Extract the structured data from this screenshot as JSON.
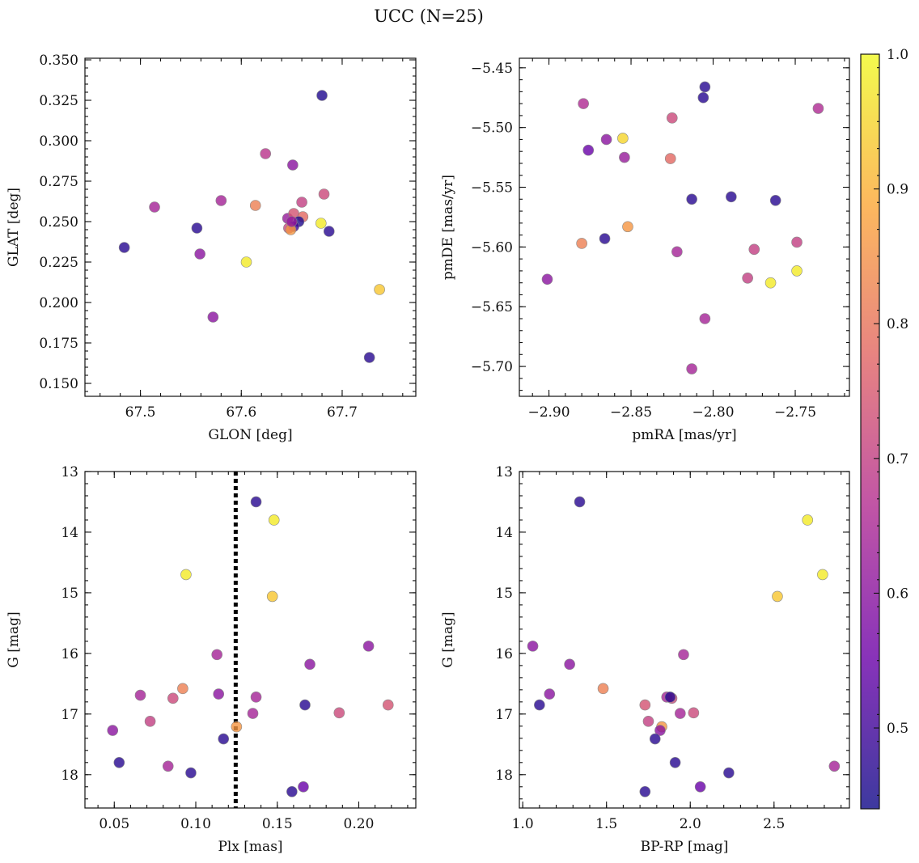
{
  "figure": {
    "title": "UCC (N=25)"
  },
  "colorbar": {
    "min": 0.44,
    "max": 1.0,
    "ticks": [
      0.5,
      0.6,
      0.7,
      0.8,
      0.9,
      1.0
    ],
    "tick_labels": [
      "0.5",
      "0.6",
      "0.7",
      "0.8",
      "0.9",
      "1.0"
    ],
    "colormap": "plasma",
    "colormap_stops": [
      "#0d0887",
      "#6a00a8",
      "#b12a90",
      "#e16462",
      "#fca636",
      "#f0f921"
    ],
    "alpha": 0.8
  },
  "chart_data": [
    {
      "id": "glon-glat",
      "type": "scatter",
      "xlabel": "GLON [deg]",
      "ylabel": "GLAT [deg]",
      "xlim": [
        67.445,
        67.773
      ],
      "ylim": [
        0.142,
        0.351
      ],
      "xticks": [
        67.5,
        67.6,
        67.7
      ],
      "xtick_labels": [
        "67.5",
        "67.6",
        "67.7"
      ],
      "yticks": [
        0.15,
        0.175,
        0.2,
        0.225,
        0.25,
        0.275,
        0.3,
        0.325,
        0.35
      ],
      "ytick_labels": [
        "0.150",
        "0.175",
        "0.200",
        "0.225",
        "0.250",
        "0.275",
        "0.300",
        "0.325",
        "0.350"
      ],
      "x": [
        67.68,
        67.624,
        67.651,
        67.514,
        67.58,
        67.682,
        67.66,
        67.614,
        67.556,
        67.646,
        67.652,
        67.661,
        67.679,
        67.657,
        67.652,
        67.687,
        67.647,
        67.649,
        67.484,
        67.559,
        67.605,
        67.737,
        67.572,
        67.727,
        67.65
      ],
      "y": [
        0.328,
        0.292,
        0.285,
        0.259,
        0.263,
        0.267,
        0.262,
        0.26,
        0.246,
        0.252,
        0.255,
        0.253,
        0.249,
        0.25,
        0.247,
        0.244,
        0.246,
        0.245,
        0.234,
        0.23,
        0.225,
        0.208,
        0.191,
        0.166,
        0.25
      ],
      "c": [
        0.46,
        0.68,
        0.6,
        0.64,
        0.64,
        0.72,
        0.7,
        0.82,
        0.47,
        0.62,
        0.74,
        0.78,
        0.98,
        0.46,
        0.5,
        0.47,
        0.72,
        0.86,
        0.47,
        0.6,
        0.98,
        0.93,
        0.6,
        0.47,
        0.62
      ]
    },
    {
      "id": "pm",
      "type": "scatter",
      "xlabel": "pmRA [mas/yr]",
      "ylabel": "pmDE [mas/yr]",
      "xlim": [
        -2.918,
        -2.717
      ],
      "ylim": [
        -5.725,
        -5.442
      ],
      "xticks": [
        -2.9,
        -2.85,
        -2.8,
        -2.75
      ],
      "xtick_labels": [
        "−2.90",
        "−2.85",
        "−2.80",
        "−2.75"
      ],
      "yticks": [
        -5.7,
        -5.65,
        -5.6,
        -5.55,
        -5.5,
        -5.45
      ],
      "ytick_labels": [
        "−5.70",
        "−5.65",
        "−5.60",
        "−5.55",
        "−5.50",
        "−5.45"
      ],
      "x": [
        -2.805,
        -2.806,
        -2.736,
        -2.879,
        -2.825,
        -2.855,
        -2.865,
        -2.876,
        -2.854,
        -2.826,
        -2.813,
        -2.789,
        -2.762,
        -2.852,
        -2.866,
        -2.88,
        -2.749,
        -2.775,
        -2.822,
        -2.749,
        -2.779,
        -2.765,
        -2.901,
        -2.805,
        -2.813
      ],
      "y": [
        -5.466,
        -5.475,
        -5.484,
        -5.48,
        -5.492,
        -5.509,
        -5.51,
        -5.519,
        -5.525,
        -5.526,
        -5.56,
        -5.558,
        -5.561,
        -5.583,
        -5.593,
        -5.597,
        -5.596,
        -5.602,
        -5.604,
        -5.62,
        -5.626,
        -5.63,
        -5.627,
        -5.66,
        -5.702
      ],
      "c": [
        0.47,
        0.47,
        0.66,
        0.66,
        0.72,
        0.95,
        0.6,
        0.55,
        0.62,
        0.78,
        0.47,
        0.47,
        0.47,
        0.86,
        0.47,
        0.82,
        0.7,
        0.7,
        0.64,
        0.98,
        0.7,
        0.98,
        0.6,
        0.64,
        0.64
      ]
    },
    {
      "id": "plx-g",
      "type": "scatter",
      "xlabel": "Plx [mas]",
      "ylabel": "G [mag]",
      "xlim": [
        0.032,
        0.235
      ],
      "ylim": [
        18.55,
        13.0
      ],
      "y_inverted": true,
      "xticks": [
        0.05,
        0.1,
        0.15,
        0.2
      ],
      "xtick_labels": [
        "0.05",
        "0.10",
        "0.15",
        "0.20"
      ],
      "yticks": [
        13,
        14,
        15,
        16,
        17,
        18
      ],
      "ytick_labels": [
        "13",
        "14",
        "15",
        "16",
        "17",
        "18"
      ],
      "vline": {
        "x": 0.1245,
        "style": "dotted",
        "color": "#000000"
      },
      "x": [
        0.137,
        0.148,
        0.094,
        0.147,
        0.206,
        0.113,
        0.17,
        0.092,
        0.066,
        0.114,
        0.086,
        0.137,
        0.167,
        0.218,
        0.072,
        0.135,
        0.188,
        0.125,
        0.049,
        0.117,
        0.053,
        0.083,
        0.097,
        0.166,
        0.159
      ],
      "y": [
        13.5,
        13.8,
        14.7,
        15.06,
        15.88,
        16.02,
        16.18,
        16.58,
        16.69,
        16.67,
        16.74,
        16.72,
        16.85,
        16.85,
        17.12,
        16.99,
        16.98,
        17.21,
        17.27,
        17.41,
        17.8,
        17.86,
        17.97,
        18.2,
        18.28
      ],
      "c": [
        0.47,
        0.98,
        0.98,
        0.93,
        0.6,
        0.64,
        0.6,
        0.82,
        0.64,
        0.6,
        0.72,
        0.64,
        0.47,
        0.74,
        0.7,
        0.64,
        0.72,
        0.86,
        0.6,
        0.47,
        0.47,
        0.64,
        0.47,
        0.55,
        0.47
      ]
    },
    {
      "id": "bprp-g",
      "type": "scatter",
      "xlabel": "BP-RP [mag]",
      "ylabel": "G [mag]",
      "xlim": [
        0.98,
        2.95
      ],
      "ylim": [
        18.55,
        13.0
      ],
      "y_inverted": true,
      "xticks": [
        1.0,
        1.5,
        2.0,
        2.5
      ],
      "xtick_labels": [
        "1.0",
        "1.5",
        "2.0",
        "2.5"
      ],
      "yticks": [
        13,
        14,
        15,
        16,
        17,
        18
      ],
      "ytick_labels": [
        "13",
        "14",
        "15",
        "16",
        "17",
        "18"
      ],
      "x": [
        1.34,
        2.7,
        2.79,
        2.52,
        1.06,
        1.96,
        1.28,
        1.48,
        1.86,
        1.16,
        1.89,
        1.88,
        1.1,
        1.73,
        1.75,
        1.94,
        2.02,
        1.83,
        1.82,
        1.79,
        1.91,
        2.86,
        2.23,
        2.06,
        1.73
      ],
      "y": [
        13.5,
        13.8,
        14.7,
        15.06,
        15.88,
        16.02,
        16.18,
        16.58,
        16.72,
        16.67,
        16.74,
        16.72,
        16.85,
        16.85,
        17.12,
        16.99,
        16.98,
        17.21,
        17.27,
        17.41,
        17.8,
        17.86,
        17.97,
        18.2,
        18.28
      ],
      "c": [
        0.47,
        0.98,
        0.98,
        0.93,
        0.6,
        0.64,
        0.6,
        0.82,
        0.64,
        0.6,
        0.72,
        0.47,
        0.47,
        0.74,
        0.7,
        0.64,
        0.72,
        0.86,
        0.6,
        0.47,
        0.47,
        0.64,
        0.47,
        0.55,
        0.47
      ]
    }
  ]
}
